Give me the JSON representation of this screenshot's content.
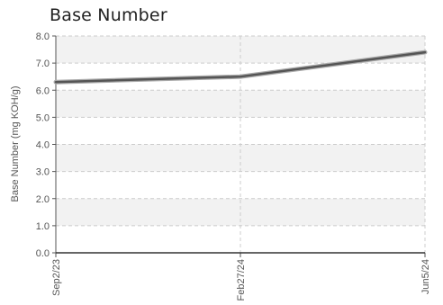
{
  "chart_data": {
    "type": "line",
    "title": "Base Number",
    "ylabel": "Base Number (mg KOH/g)",
    "xlabel": "",
    "categories": [
      "Sep2/23",
      "Feb27/24",
      "Jun5/24"
    ],
    "series": [
      {
        "values": [
          6.3,
          6.5,
          7.4
        ]
      }
    ],
    "ylim": [
      0.0,
      8.0
    ],
    "yticks": [
      "0.0",
      "1.0",
      "2.0",
      "3.0",
      "4.0",
      "5.0",
      "6.0",
      "7.0",
      "8.0"
    ],
    "grid": true,
    "colors": {
      "line": "#555555",
      "band": "#f2f2f2",
      "grid": "#cccccc",
      "axis": "#555555"
    }
  }
}
